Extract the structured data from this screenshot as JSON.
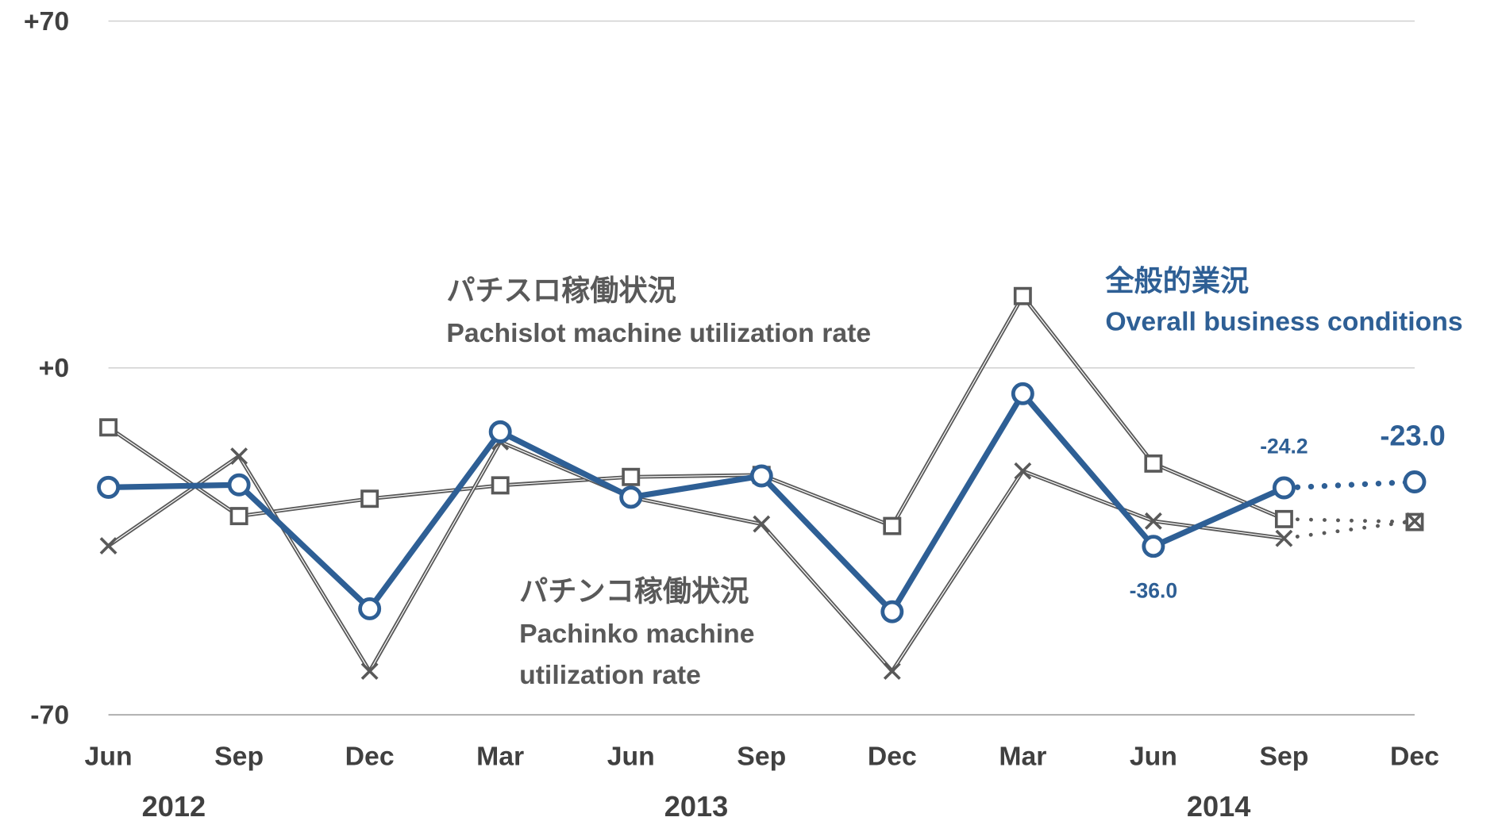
{
  "chart_data": {
    "type": "line",
    "categories": [
      "Jun",
      "Sep",
      "Dec",
      "Mar",
      "Jun",
      "Sep",
      "Dec",
      "Mar",
      "Jun",
      "Sep",
      "Dec"
    ],
    "years": [
      "2012",
      "2013",
      "2014"
    ],
    "ylim": [
      -70,
      70
    ],
    "yticks": [
      -70,
      {
        "value": 0,
        "label": "+0"
      },
      {
        "value": 70,
        "label": "+70"
      }
    ],
    "grid": true,
    "series": [
      {
        "name": "パチスロ稼働状況",
        "name_en": [
          "Pachislot machine utilization rate"
        ],
        "color": "#595959",
        "marker": "square",
        "values": [
          -12.0,
          -29.9,
          -26.4,
          -23.7,
          -22.0,
          -21.6,
          -31.9,
          14.5,
          -19.3,
          -30.5,
          -31.1
        ]
      },
      {
        "name": "パチンコ稼働状況",
        "name_en": [
          "Pachinko machine",
          "utilization rate"
        ],
        "color": "#595959",
        "marker": "x",
        "values": [
          -35.9,
          -17.8,
          -61.2,
          -14.9,
          -26.1,
          -31.5,
          -61.2,
          -20.8,
          -30.9,
          -34.4,
          -30.9
        ]
      },
      {
        "name": "全般的業況",
        "name_en": [
          "Overall business conditions"
        ],
        "color": "#2e5f95",
        "marker": "circle",
        "values": [
          -24.1,
          -23.6,
          -48.6,
          -12.9,
          -26.1,
          -21.8,
          -49.2,
          -5.2,
          -36.0,
          -24.2,
          -23.0
        ],
        "value_labels": [
          null,
          null,
          null,
          null,
          null,
          null,
          null,
          null,
          "-36.0",
          "-24.2",
          "-23.0"
        ]
      }
    ]
  }
}
